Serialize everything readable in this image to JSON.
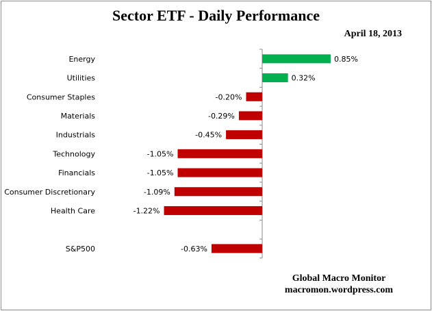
{
  "chart_data": {
    "type": "bar",
    "orientation": "horizontal",
    "title": "Sector ETF - Daily Performance",
    "subtitle": "April 18, 2013",
    "categories": [
      "Energy",
      "Utilities",
      "Consumer Staples",
      "Materials",
      "Industrials",
      "Technology",
      "Financials",
      "Consumer Discretionary",
      "Health Care",
      "",
      "S&P500"
    ],
    "values": [
      0.85,
      0.32,
      -0.2,
      -0.29,
      -0.45,
      -1.05,
      -1.05,
      -1.09,
      -1.22,
      null,
      -0.63
    ],
    "labels": [
      "0.85%",
      "0.32%",
      "-0.20%",
      "-0.29%",
      "-0.45%",
      "-1.05%",
      "-1.05%",
      "-1.09%",
      "-1.22%",
      "",
      "-0.63%"
    ],
    "unit": "%",
    "grid": false,
    "colors": {
      "positive": "#00b050",
      "negative": "#c00000"
    }
  },
  "credit": {
    "line1": "Global Macro Monitor",
    "line2": "macromon.wordpress.com"
  }
}
